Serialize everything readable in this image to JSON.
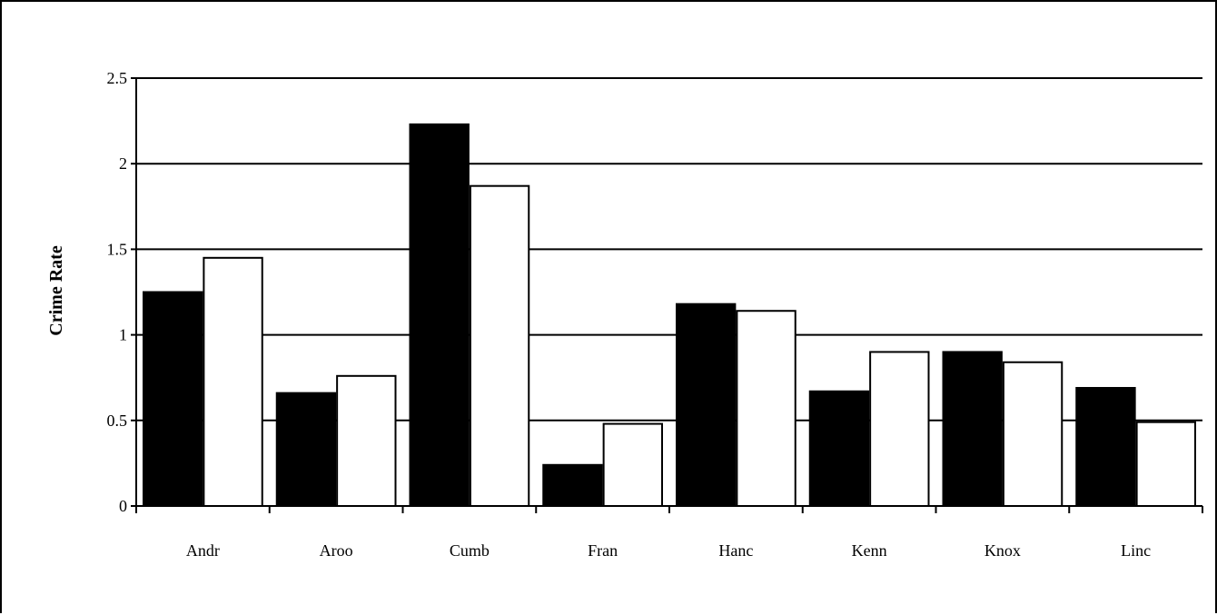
{
  "chart_data": {
    "type": "bar",
    "title": "",
    "xlabel": "",
    "ylabel": "Crime  Rate",
    "ylim": [
      0,
      2.5
    ],
    "yticks": [
      "0",
      "0.5",
      "1",
      "1.5",
      "2",
      "2.5"
    ],
    "grid": true,
    "legend": "none",
    "categories": [
      "Andr",
      "Aroo",
      "Cumb",
      "Fran",
      "Hanc",
      "Kenn",
      "Knox",
      "Linc"
    ],
    "series": [
      {
        "color": "#000000",
        "values": [
          1.25,
          0.66,
          2.23,
          0.24,
          1.18,
          0.67,
          0.9,
          0.69
        ]
      },
      {
        "color": "#ffffff",
        "values": [
          1.45,
          0.76,
          1.87,
          0.48,
          1.14,
          0.9,
          0.84,
          0.49
        ]
      }
    ]
  }
}
